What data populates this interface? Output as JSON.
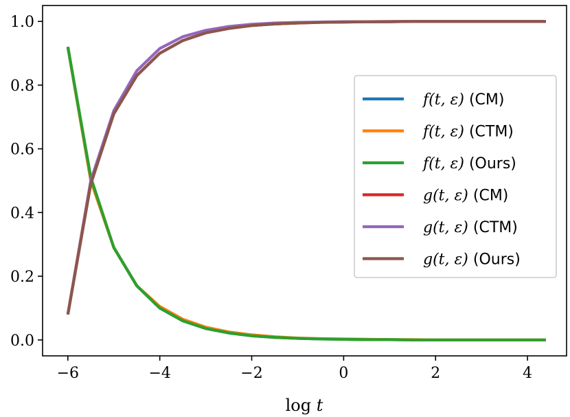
{
  "chart_data": {
    "type": "line",
    "xlabel": "log t",
    "ylabel": "",
    "title": "",
    "xlim": [
      -6.55,
      4.85
    ],
    "ylim": [
      -0.05,
      1.05
    ],
    "xticks": [
      -6,
      -4,
      -2,
      0,
      2,
      4
    ],
    "xtick_labels": [
      "−6",
      "−4",
      "−2",
      "0",
      "2",
      "4"
    ],
    "yticks": [
      0.0,
      0.2,
      0.4,
      0.6,
      0.8,
      1.0
    ],
    "ytick_labels": [
      "0.0",
      "0.2",
      "0.4",
      "0.6",
      "0.8",
      "1.0"
    ],
    "grid": false,
    "legend_position": "center-right",
    "x": [
      -6.0,
      -5.5,
      -5.0,
      -4.5,
      -4.0,
      -3.5,
      -3.0,
      -2.5,
      -2.0,
      -1.5,
      -1.0,
      -0.5,
      0.0,
      0.5,
      1.0,
      1.5,
      2.0,
      2.5,
      3.0,
      3.5,
      4.0,
      4.4
    ],
    "series": [
      {
        "name": "f(t, ε) (CM)",
        "fn": "f",
        "model": "(CM)",
        "color": "#1f77b4",
        "values": [
          0.92,
          0.5,
          0.29,
          0.17,
          0.1,
          0.06,
          0.036,
          0.022,
          0.013,
          0.008,
          0.005,
          0.003,
          0.002,
          0.001,
          0.001,
          0.0,
          0.0,
          0.0,
          0.0,
          0.0,
          0.0,
          0.0
        ]
      },
      {
        "name": "f(t, ε) (CTM)",
        "fn": "f",
        "model": "(CTM)",
        "color": "#ff7f0e",
        "values": [
          0.92,
          0.5,
          0.29,
          0.17,
          0.105,
          0.065,
          0.04,
          0.025,
          0.016,
          0.01,
          0.006,
          0.004,
          0.003,
          0.002,
          0.001,
          0.001,
          0.0,
          0.0,
          0.0,
          0.0,
          0.0,
          0.0
        ]
      },
      {
        "name": "f(t, ε) (Ours)",
        "fn": "f",
        "model": "(Ours)",
        "color": "#2ca02c",
        "values": [
          0.92,
          0.51,
          0.29,
          0.17,
          0.1,
          0.06,
          0.036,
          0.022,
          0.013,
          0.008,
          0.005,
          0.003,
          0.002,
          0.001,
          0.001,
          0.0,
          0.0,
          0.0,
          0.0,
          0.0,
          0.0,
          0.0
        ]
      },
      {
        "name": "g(t, ε) (CM)",
        "fn": "g",
        "model": "(CM)",
        "color": "#d62728",
        "values": [
          0.08,
          0.5,
          0.71,
          0.83,
          0.9,
          0.94,
          0.964,
          0.978,
          0.987,
          0.992,
          0.995,
          0.997,
          0.998,
          0.999,
          0.999,
          1.0,
          1.0,
          1.0,
          1.0,
          1.0,
          1.0,
          1.0
        ]
      },
      {
        "name": "g(t, ε) (CTM)",
        "fn": "g",
        "model": "(CTM)",
        "color": "#9467bd",
        "values": [
          0.08,
          0.5,
          0.72,
          0.845,
          0.915,
          0.952,
          0.972,
          0.984,
          0.991,
          0.995,
          0.997,
          0.998,
          0.999,
          0.999,
          1.0,
          1.0,
          1.0,
          1.0,
          1.0,
          1.0,
          1.0,
          1.0
        ]
      },
      {
        "name": "g(t, ε) (Ours)",
        "fn": "g",
        "model": "(Ours)",
        "color": "#8c564b",
        "values": [
          0.08,
          0.49,
          0.71,
          0.83,
          0.9,
          0.94,
          0.964,
          0.978,
          0.987,
          0.992,
          0.995,
          0.997,
          0.998,
          0.999,
          0.999,
          1.0,
          1.0,
          1.0,
          1.0,
          1.0,
          1.0,
          1.0
        ]
      }
    ]
  }
}
